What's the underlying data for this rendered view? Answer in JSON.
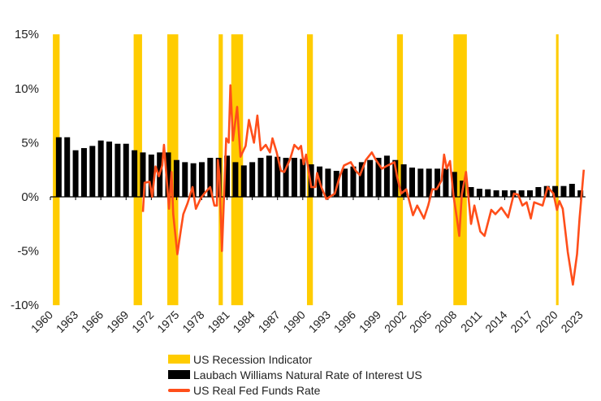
{
  "chart_data": {
    "type": "bar+line",
    "title": "",
    "xlabel": "",
    "ylabel": "",
    "ylim": [
      -10,
      15
    ],
    "yticks": [
      -10,
      -5,
      0,
      5,
      10,
      15
    ],
    "ytick_labels": [
      "-10%",
      "-5%",
      "0%",
      "5%",
      "10%",
      "15%"
    ],
    "xlim": [
      1960,
      2023.6
    ],
    "xticks": [
      1960,
      1963,
      1966,
      1969,
      1972,
      1975,
      1978,
      1981,
      1984,
      1987,
      1990,
      1993,
      1996,
      1999,
      2002,
      2005,
      2008,
      2011,
      2014,
      2017,
      2020,
      2023
    ],
    "grid": false,
    "legend_placement": "bottom",
    "colors": {
      "recession": "#FFCC00",
      "natural_rate": "#000000",
      "fed_funds": "#FF4E1A"
    },
    "recessions": [
      [
        1960.3,
        1961.1
      ],
      [
        1969.9,
        1970.9
      ],
      [
        1973.9,
        1975.2
      ],
      [
        1980.0,
        1980.5
      ],
      [
        1981.5,
        1982.9
      ],
      [
        1990.5,
        1991.2
      ],
      [
        2001.2,
        2001.9
      ],
      [
        2007.9,
        2009.5
      ],
      [
        2020.1,
        2020.4
      ]
    ],
    "series": [
      {
        "name": "US Recession Indicator",
        "kind": "band"
      },
      {
        "name": "Laubach Williams Natural Rate of Interest US",
        "kind": "bar",
        "x": [
          1961,
          1962,
          1963,
          1964,
          1965,
          1966,
          1967,
          1968,
          1969,
          1970,
          1971,
          1972,
          1973,
          1974,
          1975,
          1976,
          1977,
          1978,
          1979,
          1980,
          1981,
          1982,
          1983,
          1984,
          1985,
          1986,
          1987,
          1988,
          1989,
          1990,
          1991,
          1992,
          1993,
          1994,
          1995,
          1996,
          1997,
          1998,
          1999,
          2000,
          2001,
          2002,
          2003,
          2004,
          2005,
          2006,
          2007,
          2008,
          2009,
          2010,
          2011,
          2012,
          2013,
          2014,
          2015,
          2016,
          2017,
          2018,
          2019,
          2020,
          2021,
          2022,
          2023
        ],
        "values": [
          5.5,
          5.5,
          4.3,
          4.5,
          4.7,
          5.2,
          5.1,
          4.9,
          4.9,
          4.3,
          4.1,
          3.9,
          4.1,
          4.1,
          3.4,
          3.2,
          3.1,
          3.2,
          3.6,
          3.6,
          3.8,
          3.2,
          2.9,
          3.2,
          3.6,
          3.8,
          3.7,
          3.6,
          3.6,
          3.5,
          3.0,
          2.8,
          2.6,
          2.4,
          2.6,
          2.8,
          3.2,
          3.4,
          3.6,
          3.8,
          3.4,
          3.0,
          2.7,
          2.6,
          2.6,
          2.6,
          2.6,
          2.3,
          1.5,
          0.9,
          0.75,
          0.7,
          0.6,
          0.6,
          0.6,
          0.6,
          0.6,
          0.9,
          1.0,
          1.0,
          1.0,
          1.2,
          0.6
        ]
      },
      {
        "name": "US Real Fed Funds Rate",
        "kind": "line",
        "points": [
          [
            1971.0,
            -1.4
          ],
          [
            1971.2,
            1.3
          ],
          [
            1971.8,
            1.4
          ],
          [
            1972.1,
            0
          ],
          [
            1972.5,
            2.8
          ],
          [
            1972.9,
            1.9
          ],
          [
            1973.3,
            2.9
          ],
          [
            1973.5,
            4.8
          ],
          [
            1974.1,
            -1.1
          ],
          [
            1974.4,
            2.3
          ],
          [
            1974.6,
            -1.6
          ],
          [
            1975.1,
            -5.3
          ],
          [
            1975.5,
            -3.1
          ],
          [
            1975.8,
            -1.6
          ],
          [
            1976.3,
            -0.6
          ],
          [
            1976.9,
            0.9
          ],
          [
            1977.3,
            -1.1
          ],
          [
            1977.9,
            -0.1
          ],
          [
            1978.4,
            0.4
          ],
          [
            1979.0,
            0.9
          ],
          [
            1979.5,
            -0.8
          ],
          [
            1979.8,
            -0.8
          ],
          [
            1979.9,
            3.4
          ],
          [
            1980.1,
            2.0
          ],
          [
            1980.4,
            -5.0
          ],
          [
            1980.9,
            5.4
          ],
          [
            1981.2,
            5.0
          ],
          [
            1981.4,
            10.3
          ],
          [
            1981.7,
            5.2
          ],
          [
            1982.2,
            8.3
          ],
          [
            1982.6,
            3.7
          ],
          [
            1983.2,
            4.7
          ],
          [
            1983.6,
            7.1
          ],
          [
            1984.2,
            5.0
          ],
          [
            1984.6,
            7.5
          ],
          [
            1985.0,
            4.3
          ],
          [
            1985.6,
            4.8
          ],
          [
            1986.1,
            4.1
          ],
          [
            1986.4,
            5.4
          ],
          [
            1986.9,
            4.1
          ],
          [
            1987.4,
            2.4
          ],
          [
            1987.8,
            2.3
          ],
          [
            1988.5,
            3.5
          ],
          [
            1989.0,
            4.8
          ],
          [
            1989.5,
            4.4
          ],
          [
            1989.8,
            4.7
          ],
          [
            1990.1,
            3.0
          ],
          [
            1990.4,
            3.9
          ],
          [
            1991.0,
            0.9
          ],
          [
            1991.5,
            0.9
          ],
          [
            1991.7,
            2.2
          ],
          [
            1992.2,
            0.9
          ],
          [
            1992.8,
            -0.2
          ],
          [
            1993.8,
            0.3
          ],
          [
            1994.4,
            1.9
          ],
          [
            1994.9,
            2.9
          ],
          [
            1995.7,
            3.2
          ],
          [
            1996.3,
            2.4
          ],
          [
            1996.8,
            2.0
          ],
          [
            1997.5,
            3.4
          ],
          [
            1998.2,
            4.1
          ],
          [
            1998.7,
            3.4
          ],
          [
            1999.4,
            2.6
          ],
          [
            2000.1,
            2.9
          ],
          [
            2000.9,
            3.2
          ],
          [
            2001.2,
            1.9
          ],
          [
            2001.7,
            0.3
          ],
          [
            2002.3,
            0.7
          ],
          [
            2003.1,
            -1.7
          ],
          [
            2003.6,
            -0.8
          ],
          [
            2004.4,
            -2.0
          ],
          [
            2004.9,
            -0.8
          ],
          [
            2005.4,
            0.7
          ],
          [
            2005.9,
            0.7
          ],
          [
            2006.5,
            1.5
          ],
          [
            2006.8,
            3.9
          ],
          [
            2007.1,
            2.6
          ],
          [
            2007.5,
            3.3
          ],
          [
            2007.9,
            0.2
          ],
          [
            2008.3,
            -1.9
          ],
          [
            2008.6,
            -3.6
          ],
          [
            2008.9,
            0.2
          ],
          [
            2009.4,
            2.3
          ],
          [
            2010.0,
            -2.5
          ],
          [
            2010.4,
            -0.8
          ],
          [
            2011.1,
            -3.2
          ],
          [
            2011.6,
            -3.6
          ],
          [
            2011.9,
            -2.7
          ],
          [
            2012.4,
            -1.2
          ],
          [
            2012.9,
            -1.6
          ],
          [
            2013.6,
            -1.0
          ],
          [
            2014.4,
            -1.9
          ],
          [
            2015.1,
            0.3
          ],
          [
            2015.6,
            0.2
          ],
          [
            2016.1,
            -0.8
          ],
          [
            2016.6,
            -0.5
          ],
          [
            2017.1,
            -2.0
          ],
          [
            2017.5,
            -0.5
          ],
          [
            2018.5,
            -0.8
          ],
          [
            2019.1,
            0.9
          ],
          [
            2019.8,
            0.3
          ],
          [
            2020.2,
            -1.2
          ],
          [
            2020.5,
            -0.4
          ],
          [
            2020.9,
            -1.1
          ],
          [
            2021.5,
            -5.1
          ],
          [
            2022.1,
            -8.1
          ],
          [
            2022.6,
            -5.3
          ],
          [
            2022.9,
            -2.0
          ],
          [
            2023.4,
            2.5
          ]
        ]
      }
    ]
  },
  "legend": {
    "items": [
      {
        "label": "US Recession Indicator"
      },
      {
        "label": "Laubach Williams Natural Rate of Interest US"
      },
      {
        "label": "US Real Fed Funds Rate"
      }
    ]
  }
}
